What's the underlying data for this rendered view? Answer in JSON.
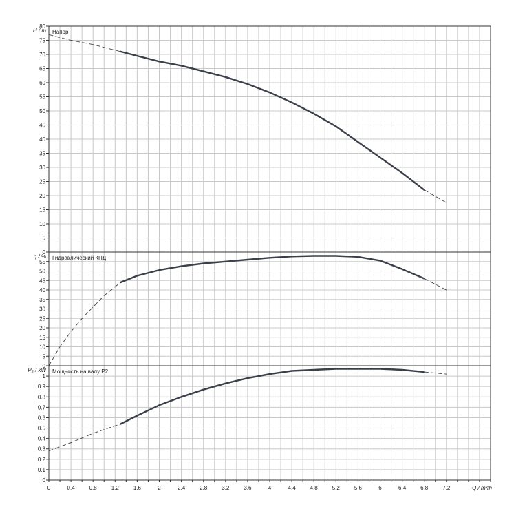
{
  "colors": {
    "grid": "#c8c8c8",
    "frame": "#333333",
    "curve": "#3a3f4a",
    "text": "#222222"
  },
  "x_axis": {
    "label": "Q / m³/h",
    "min": 0,
    "max": 8,
    "tick_labels": [
      "0",
      "0.4",
      "0.8",
      "1.2",
      "1.6",
      "2",
      "2.4",
      "2.8",
      "3.2",
      "3.6",
      "4",
      "4.4",
      "4.8",
      "5.2",
      "5.6",
      "6",
      "6.4",
      "6.8",
      "7.2"
    ]
  },
  "chart_data": [
    {
      "type": "line",
      "title": "Напор",
      "ylabel": "H / m",
      "ylim": [
        0,
        80
      ],
      "y_ticks": [
        0,
        5,
        10,
        15,
        20,
        25,
        30,
        35,
        40,
        45,
        50,
        55,
        60,
        65,
        70,
        75,
        80
      ],
      "grid": true,
      "series": [
        {
          "style": "solid",
          "x": [
            1.3,
            1.6,
            2.0,
            2.4,
            2.8,
            3.2,
            3.6,
            4.0,
            4.4,
            4.8,
            5.2,
            5.6,
            6.0,
            6.4,
            6.8
          ],
          "y": [
            71,
            69.5,
            67.5,
            66,
            64,
            62,
            59.5,
            56.5,
            53,
            49,
            44.5,
            39,
            33.5,
            28,
            22
          ]
        },
        {
          "style": "dashed",
          "x": [
            0,
            0.4,
            0.8,
            1.3
          ],
          "y": [
            77,
            75,
            73.5,
            71
          ]
        },
        {
          "style": "dashed",
          "x": [
            6.8,
            7.2
          ],
          "y": [
            22,
            17.5
          ]
        }
      ]
    },
    {
      "type": "line",
      "title": "Гидравлический КПД",
      "ylabel": "η / %",
      "ylim": [
        0,
        60
      ],
      "y_ticks": [
        0,
        5,
        10,
        15,
        20,
        25,
        30,
        35,
        40,
        45,
        50,
        55
      ],
      "grid": true,
      "series": [
        {
          "style": "solid",
          "x": [
            1.3,
            1.6,
            2.0,
            2.4,
            2.8,
            3.2,
            3.6,
            4.0,
            4.4,
            4.8,
            5.2,
            5.6,
            6.0,
            6.4,
            6.8
          ],
          "y": [
            44,
            47.5,
            50.5,
            52.5,
            54,
            55,
            56,
            57,
            57.7,
            58,
            58,
            57.5,
            55.5,
            51,
            46
          ]
        },
        {
          "style": "dashed",
          "x": [
            0,
            0.2,
            0.4,
            0.6,
            0.8,
            1.0,
            1.3
          ],
          "y": [
            0,
            10,
            18,
            25,
            31,
            37,
            44
          ]
        },
        {
          "style": "dashed",
          "x": [
            6.8,
            7.2
          ],
          "y": [
            46,
            40
          ]
        }
      ]
    },
    {
      "type": "line",
      "title": "Мощность на валу P2",
      "ylabel": "P₂ / kW",
      "ylim": [
        0,
        1.1
      ],
      "y_ticks": [
        0,
        0.1,
        0.2,
        0.3,
        0.4,
        0.5,
        0.6,
        0.7,
        0.8,
        0.9,
        1
      ],
      "grid": true,
      "series": [
        {
          "style": "solid",
          "x": [
            1.3,
            1.6,
            2.0,
            2.4,
            2.8,
            3.2,
            3.6,
            4.0,
            4.4,
            4.8,
            5.2,
            5.6,
            6.0,
            6.4,
            6.8
          ],
          "y": [
            0.54,
            0.62,
            0.72,
            0.8,
            0.87,
            0.93,
            0.98,
            1.02,
            1.05,
            1.06,
            1.07,
            1.07,
            1.07,
            1.06,
            1.04
          ]
        },
        {
          "style": "dashed",
          "x": [
            0,
            0.4,
            0.8,
            1.3
          ],
          "y": [
            0.28,
            0.36,
            0.45,
            0.54
          ]
        },
        {
          "style": "dashed",
          "x": [
            6.8,
            7.2
          ],
          "y": [
            1.04,
            1.02
          ]
        }
      ]
    }
  ]
}
